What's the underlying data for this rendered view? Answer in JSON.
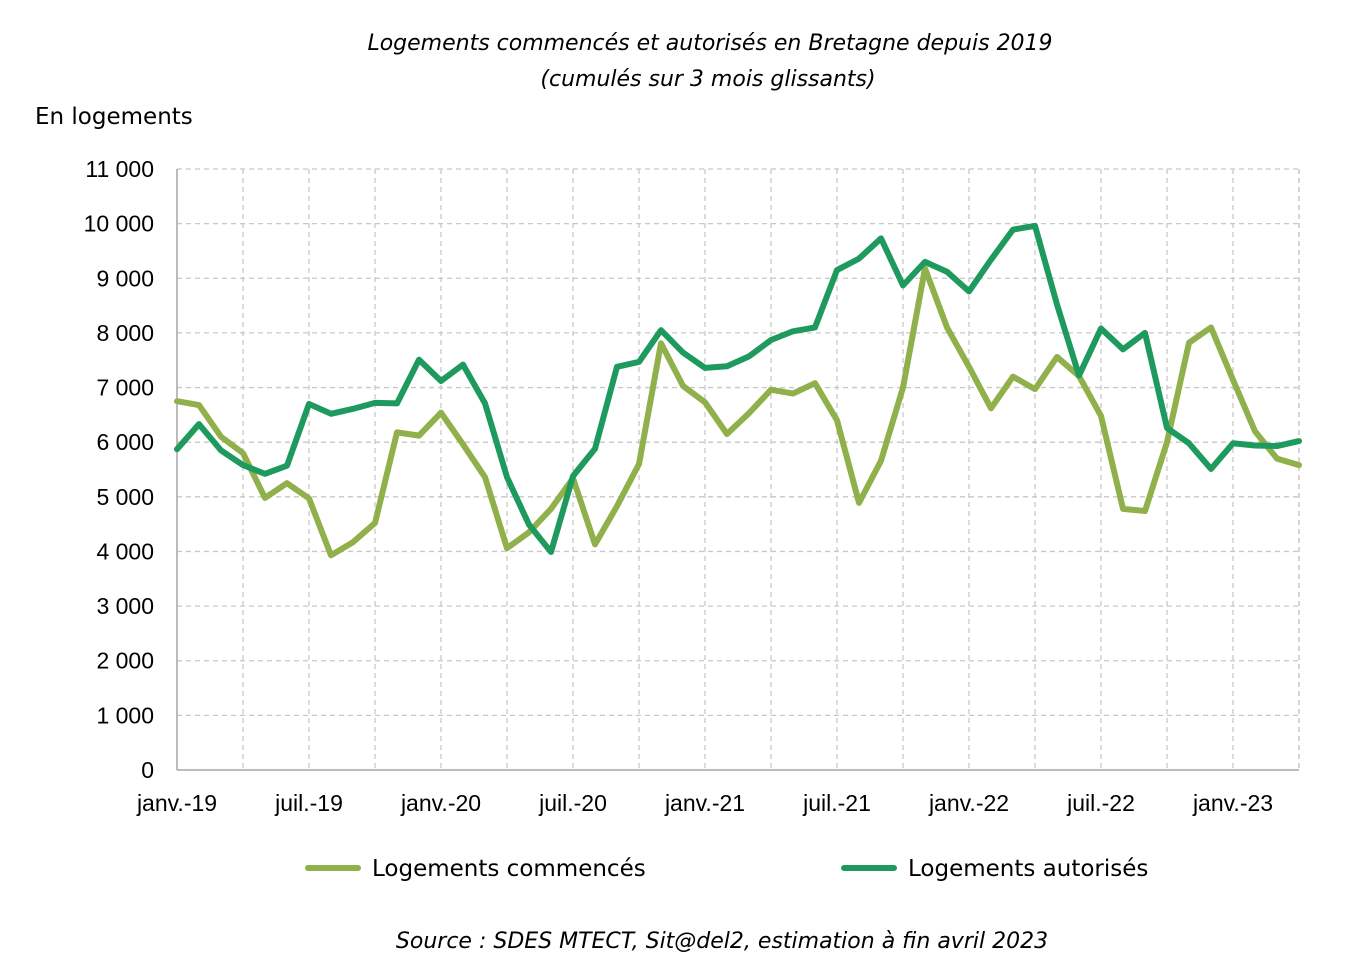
{
  "chart_data": {
    "type": "line",
    "title": "Logements commencés et autorisés en Bretagne depuis 2019",
    "subtitle": "(cumulés sur 3 mois glissants)",
    "ylabel": "En logements",
    "xlabel": "",
    "source": "Source : SDES MTECT, Sit@del2, estimation à fin avril 2023",
    "ylim": [
      0,
      11000
    ],
    "y_ticks": [
      0,
      1000,
      2000,
      3000,
      4000,
      5000,
      6000,
      7000,
      8000,
      9000,
      10000,
      11000
    ],
    "y_tick_labels": [
      "0",
      "1 000",
      "2 000",
      "3 000",
      "4 000",
      "5 000",
      "6 000",
      "7 000",
      "8 000",
      "9 000",
      "10 000",
      "11 000"
    ],
    "x_tick_labels": [
      "janv.-19",
      "juil.-19",
      "janv.-20",
      "juil.-20",
      "janv.-21",
      "juil.-21",
      "janv.-22",
      "juil.-22",
      "janv.-23"
    ],
    "x_tick_months": [
      "2019-01",
      "2019-07",
      "2020-01",
      "2020-07",
      "2021-01",
      "2021-07",
      "2022-01",
      "2022-07",
      "2023-01"
    ],
    "x": [
      "2019-01",
      "2019-02",
      "2019-03",
      "2019-04",
      "2019-05",
      "2019-06",
      "2019-07",
      "2019-08",
      "2019-09",
      "2019-10",
      "2019-11",
      "2019-12",
      "2020-01",
      "2020-02",
      "2020-03",
      "2020-04",
      "2020-05",
      "2020-06",
      "2020-07",
      "2020-08",
      "2020-09",
      "2020-10",
      "2020-11",
      "2020-12",
      "2021-01",
      "2021-02",
      "2021-03",
      "2021-04",
      "2021-05",
      "2021-06",
      "2021-07",
      "2021-08",
      "2021-09",
      "2021-10",
      "2021-11",
      "2021-12",
      "2022-01",
      "2022-02",
      "2022-03",
      "2022-04",
      "2022-05",
      "2022-06",
      "2022-07",
      "2022-08",
      "2022-09",
      "2022-10",
      "2022-11",
      "2022-12",
      "2023-01",
      "2023-02",
      "2023-03",
      "2023-04"
    ],
    "series": [
      {
        "name": "Logements commencés",
        "color": "#8fb04a",
        "values": [
          6750,
          6680,
          6100,
          5800,
          4980,
          5250,
          4970,
          3930,
          4170,
          4520,
          6180,
          6120,
          6540,
          5960,
          5360,
          4060,
          4350,
          4780,
          5340,
          4130,
          4830,
          5600,
          7810,
          7030,
          6730,
          6150,
          6530,
          6960,
          6890,
          7080,
          6400,
          4890,
          5660,
          7000,
          9180,
          8100,
          7380,
          6620,
          7200,
          6970,
          7560,
          7210,
          6480,
          4780,
          4740,
          6000,
          7820,
          8100,
          7140,
          6200,
          5700,
          5580
        ]
      },
      {
        "name": "Logements autorisés",
        "color": "#1e9a5e",
        "values": [
          5870,
          6330,
          5850,
          5580,
          5420,
          5570,
          6700,
          6520,
          6610,
          6720,
          6710,
          7510,
          7120,
          7420,
          6710,
          5360,
          4490,
          3990,
          5380,
          5880,
          7380,
          7470,
          8050,
          7640,
          7360,
          7390,
          7570,
          7870,
          8030,
          8100,
          9150,
          9360,
          9730,
          8870,
          9300,
          9120,
          8760,
          9340,
          9890,
          9960,
          8520,
          7220,
          8080,
          7700,
          8000,
          6260,
          5980,
          5510,
          5980,
          5940,
          5930,
          6020
        ]
      }
    ],
    "grid": true,
    "legend_position": "bottom"
  }
}
